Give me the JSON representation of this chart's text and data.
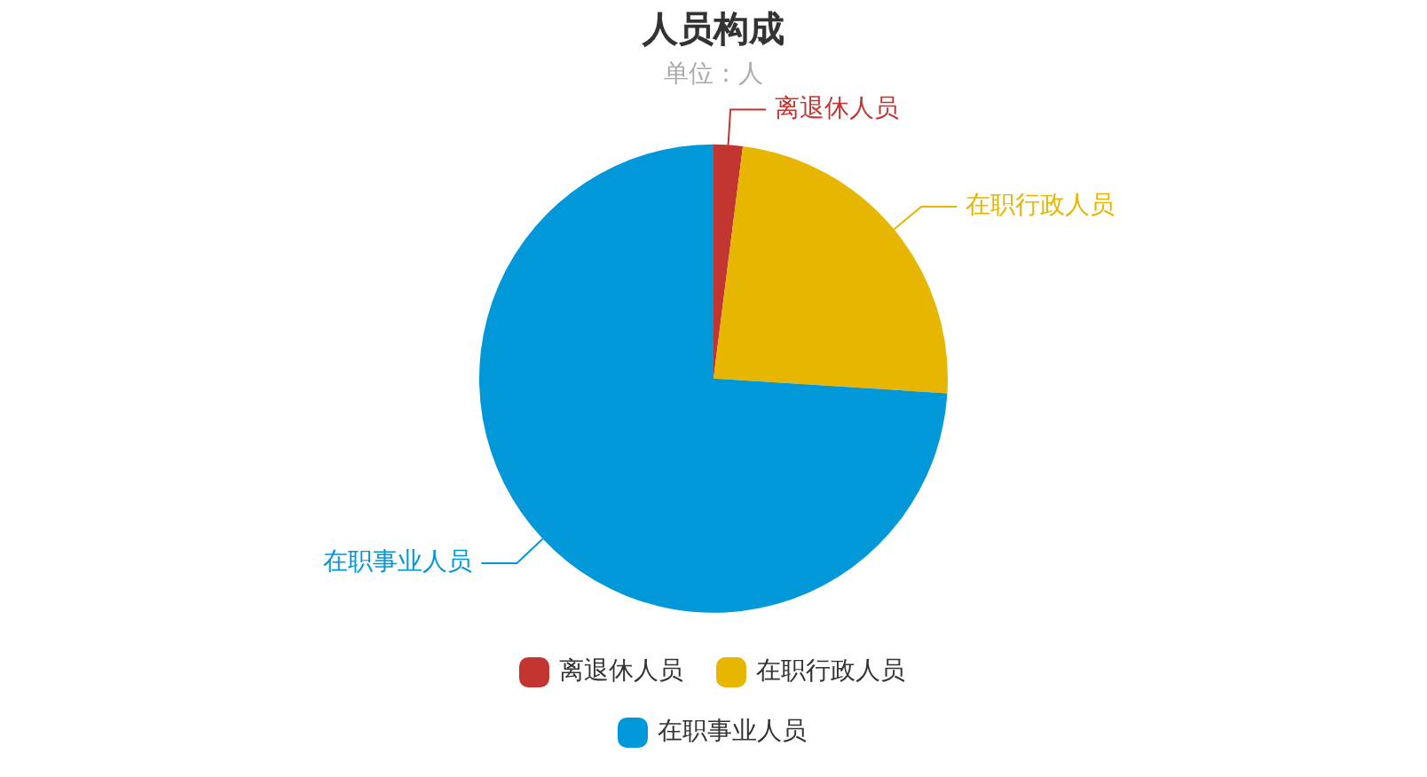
{
  "chart_data": {
    "type": "pie",
    "title": "人员构成",
    "subtitle": "单位：人",
    "categories": [
      "离退休人员",
      "在职行政人员",
      "在职事业人员"
    ],
    "values": [
      2,
      24,
      74
    ],
    "colors": [
      "#c23531",
      "#e6b600",
      "#0098d9"
    ],
    "legend": "bottom"
  }
}
